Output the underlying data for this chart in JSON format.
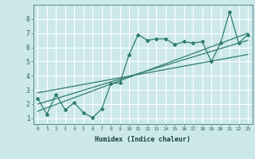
{
  "xlabel": "Humidex (Indice chaleur)",
  "ylabel": "",
  "bg_color": "#cce8ea",
  "grid_color": "#ffffff",
  "line_color": "#2e7d6e",
  "xlim": [
    -0.5,
    23.5
  ],
  "ylim": [
    0.6,
    9.0
  ],
  "xticks": [
    0,
    1,
    2,
    3,
    4,
    5,
    6,
    7,
    8,
    9,
    10,
    11,
    12,
    13,
    14,
    15,
    16,
    17,
    18,
    19,
    20,
    21,
    22,
    23
  ],
  "yticks": [
    1,
    2,
    3,
    4,
    5,
    6,
    7,
    8
  ],
  "main_x": [
    0,
    1,
    2,
    3,
    4,
    5,
    6,
    7,
    8,
    9,
    10,
    11,
    12,
    13,
    14,
    15,
    16,
    17,
    18,
    19,
    20,
    21,
    22,
    23
  ],
  "main_y": [
    2.4,
    1.3,
    2.7,
    1.6,
    2.1,
    1.4,
    1.05,
    1.65,
    3.45,
    3.5,
    5.5,
    6.9,
    6.5,
    6.6,
    6.6,
    6.2,
    6.4,
    6.3,
    6.4,
    5.0,
    6.3,
    8.5,
    6.3,
    6.9
  ],
  "trend1_x": [
    0,
    23
  ],
  "trend1_y": [
    2.0,
    6.5
  ],
  "trend2_x": [
    0,
    23
  ],
  "trend2_y": [
    2.8,
    5.5
  ],
  "trend3_x": [
    0,
    23
  ],
  "trend3_y": [
    1.5,
    7.0
  ]
}
